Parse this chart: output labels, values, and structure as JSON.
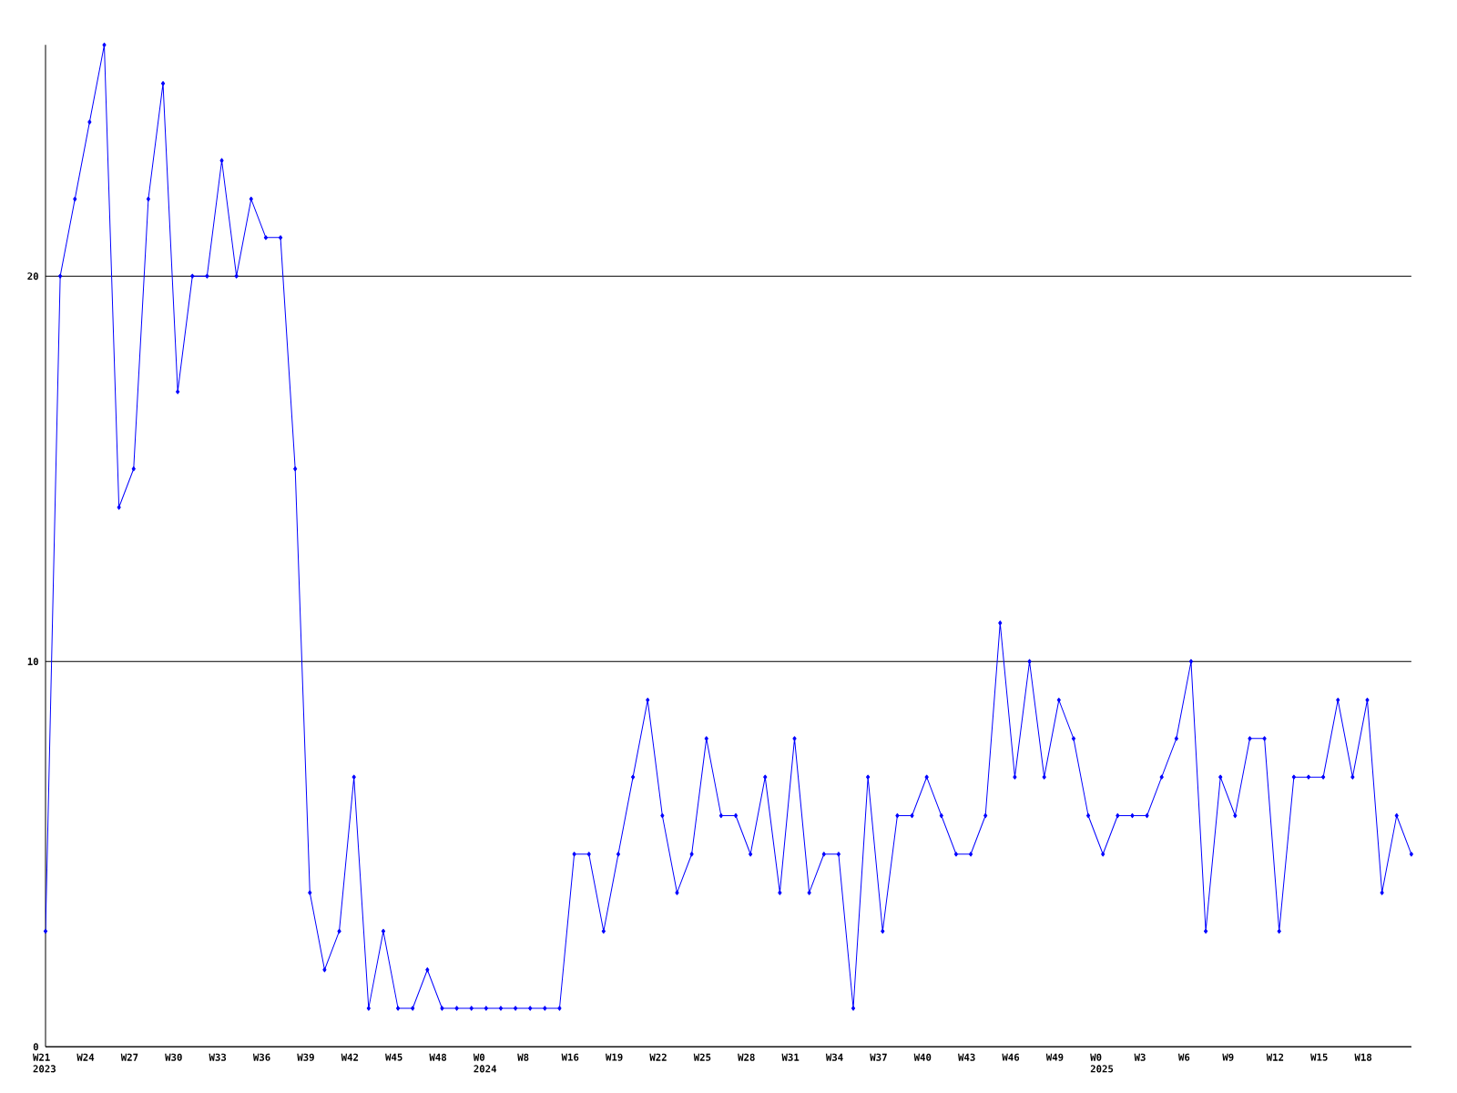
{
  "chart_data": {
    "type": "line",
    "categories": [
      "W21 2023",
      null,
      null,
      "W24",
      null,
      null,
      "W27",
      null,
      null,
      "W30",
      null,
      null,
      "W33",
      null,
      null,
      "W36",
      null,
      null,
      "W39",
      null,
      null,
      "W42",
      null,
      null,
      "W45",
      null,
      null,
      "W48",
      null,
      null,
      "W0 2024",
      null,
      null,
      "W8",
      null,
      null,
      "W16",
      null,
      null,
      "W19",
      null,
      null,
      "W22",
      null,
      null,
      "W25",
      null,
      null,
      "W28",
      null,
      null,
      "W31",
      null,
      null,
      "W34",
      null,
      null,
      "W37",
      null,
      null,
      "W40",
      null,
      null,
      "W43",
      null,
      null,
      "W46",
      null,
      null,
      "W49",
      null,
      null,
      "W0 2025",
      null,
      null,
      "W3",
      null,
      null,
      "W6",
      null,
      null,
      "W9",
      null,
      null,
      "W12",
      null,
      null,
      "W15",
      null,
      null,
      "W18",
      null,
      null,
      null
    ],
    "values": [
      3,
      20,
      22,
      24,
      26,
      14,
      15,
      22,
      25,
      17,
      20,
      20,
      23,
      20,
      22,
      21,
      21,
      15,
      4,
      2,
      3,
      7,
      1,
      3,
      1,
      1,
      2,
      1,
      1,
      1,
      1,
      1,
      1,
      1,
      1,
      1,
      5,
      5,
      3,
      5,
      7,
      9,
      6,
      4,
      5,
      8,
      6,
      6,
      5,
      7,
      4,
      8,
      4,
      5,
      5,
      1,
      7,
      3,
      6,
      6,
      7,
      6,
      5,
      5,
      6,
      11,
      7,
      10,
      7,
      9,
      8,
      6,
      5,
      6,
      6,
      6,
      7,
      8,
      10,
      3,
      7,
      6,
      8,
      8,
      3,
      7,
      7,
      7,
      9,
      7,
      9,
      4,
      6,
      5
    ],
    "color": "#0000ff",
    "ylim": [
      0,
      26
    ],
    "yticks": [
      0,
      10,
      20
    ],
    "grid": "y",
    "marker": "diamond"
  }
}
